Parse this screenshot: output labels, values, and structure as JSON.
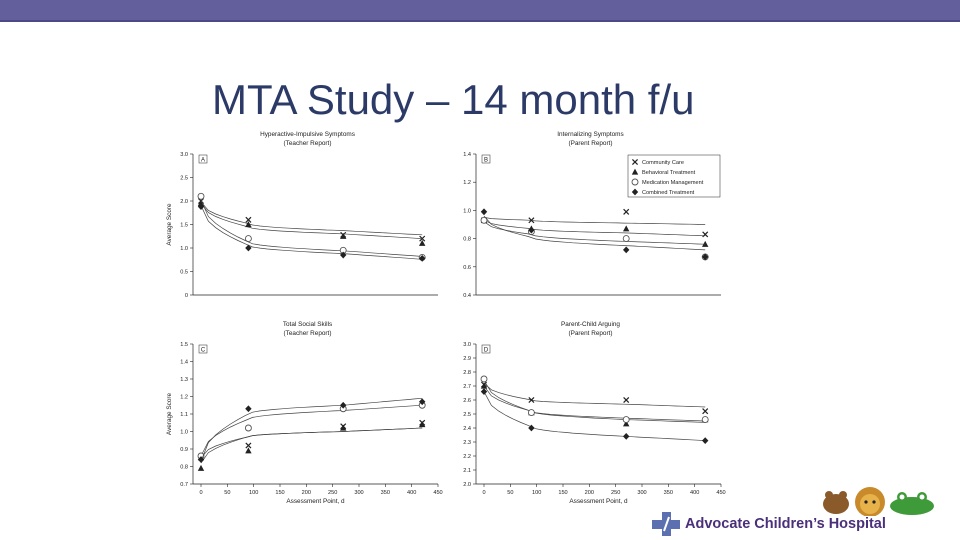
{
  "slide": {
    "title": "MTA Study – 14 month f/u",
    "logo_text": "Advocate Children’s Hospital",
    "accent_color": "#625f9c",
    "title_color": "#2c3a67",
    "logo_color": "#4a2f7a"
  },
  "legend": [
    {
      "name": "Community Care",
      "marker": "x"
    },
    {
      "name": "Behavioral Treatment",
      "marker": "triangle"
    },
    {
      "name": "Medication Management",
      "marker": "circle"
    },
    {
      "name": "Combined Treatment",
      "marker": "diamond"
    }
  ],
  "chart_data": [
    {
      "type": "scatter",
      "panel": "A",
      "title": "Hyperactive-Impulsive Symptoms",
      "subtitle": "(Teacher Report)",
      "xlabel": "",
      "ylabel": "Average Score",
      "xlim": [
        0,
        450
      ],
      "xticks": [],
      "ylim": [
        0,
        3.0
      ],
      "yticks": [
        0,
        0.5,
        1.0,
        1.5,
        2.0,
        2.5,
        3.0
      ],
      "ydecimals": 1,
      "x": [
        0,
        90,
        270,
        420
      ],
      "series": [
        {
          "name": "Community Care",
          "marker": "x",
          "values": [
            2.0,
            1.6,
            1.28,
            1.2
          ],
          "curve": [
            1.98,
            1.52,
            1.37,
            1.28
          ]
        },
        {
          "name": "Behavioral Treatment",
          "marker": "triangle",
          "values": [
            1.95,
            1.5,
            1.25,
            1.1
          ],
          "curve": [
            1.95,
            1.45,
            1.3,
            1.2
          ]
        },
        {
          "name": "Medication Management",
          "marker": "circle",
          "values": [
            2.1,
            1.2,
            0.95,
            0.8
          ],
          "curve": [
            2.02,
            1.13,
            0.94,
            0.82
          ]
        },
        {
          "name": "Combined Treatment",
          "marker": "diamond",
          "values": [
            1.88,
            1.0,
            0.85,
            0.78
          ],
          "curve": [
            1.9,
            1.06,
            0.88,
            0.76
          ]
        }
      ]
    },
    {
      "type": "scatter",
      "panel": "B",
      "title": "Internalizing Symptoms",
      "subtitle": "(Parent Report)",
      "xlabel": "",
      "ylabel": "",
      "xlim": [
        0,
        450
      ],
      "xticks": [],
      "ylim": [
        0.4,
        1.4
      ],
      "yticks": [
        0.4,
        0.6,
        0.8,
        1.0,
        1.2,
        1.4
      ],
      "ydecimals": 1,
      "x": [
        0,
        90,
        270,
        420
      ],
      "series": [
        {
          "name": "Community Care",
          "marker": "x",
          "values": [
            0.93,
            0.93,
            0.99,
            0.83
          ],
          "curve": [
            0.95,
            0.93,
            0.91,
            0.9
          ]
        },
        {
          "name": "Behavioral Treatment",
          "marker": "triangle",
          "values": [
            0.93,
            0.87,
            0.87,
            0.76
          ],
          "curve": [
            0.93,
            0.87,
            0.84,
            0.82
          ]
        },
        {
          "name": "Medication Management",
          "marker": "circle",
          "values": [
            0.93,
            0.85,
            0.8,
            0.67
          ],
          "curve": [
            0.92,
            0.83,
            0.78,
            0.76
          ]
        },
        {
          "name": "Combined Treatment",
          "marker": "diamond",
          "values": [
            0.99,
            0.86,
            0.72,
            0.67
          ],
          "curve": [
            0.96,
            0.81,
            0.75,
            0.72
          ]
        }
      ]
    },
    {
      "type": "scatter",
      "panel": "C",
      "title": "Total Social Skills",
      "subtitle": "(Teacher Report)",
      "xlabel": "Assessment Point, d",
      "ylabel": "Average Score",
      "xlim": [
        0,
        450
      ],
      "xticks": [
        0,
        50,
        100,
        150,
        200,
        250,
        300,
        350,
        400,
        450
      ],
      "ylim": [
        0.7,
        1.5
      ],
      "yticks": [
        0.7,
        0.8,
        0.9,
        1.0,
        1.1,
        1.2,
        1.3,
        1.4,
        1.5
      ],
      "ydecimals": 1,
      "x": [
        0,
        90,
        270,
        420
      ],
      "series": [
        {
          "name": "Community Care",
          "marker": "x",
          "values": [
            0.85,
            0.92,
            1.03,
            1.05
          ],
          "curve": [
            0.85,
            0.97,
            1.0,
            1.02
          ]
        },
        {
          "name": "Behavioral Treatment",
          "marker": "triangle",
          "values": [
            0.79,
            0.89,
            1.02,
            1.04
          ],
          "curve": [
            0.82,
            0.97,
            1.0,
            1.02
          ]
        },
        {
          "name": "Medication Management",
          "marker": "circle",
          "values": [
            0.86,
            1.02,
            1.13,
            1.15
          ],
          "curve": [
            0.86,
            1.07,
            1.12,
            1.15
          ]
        },
        {
          "name": "Combined Treatment",
          "marker": "diamond",
          "values": [
            0.84,
            1.13,
            1.15,
            1.17
          ],
          "curve": [
            0.83,
            1.1,
            1.15,
            1.19
          ]
        }
      ]
    },
    {
      "type": "scatter",
      "panel": "D",
      "title": "Parent-Child Arguing",
      "subtitle": "(Parent Report)",
      "xlabel": "Assessment Point, d",
      "ylabel": "",
      "xlim": [
        0,
        450
      ],
      "xticks": [
        0,
        50,
        100,
        150,
        200,
        250,
        300,
        350,
        400,
        450
      ],
      "ylim": [
        2.0,
        3.0
      ],
      "yticks": [
        2.0,
        2.1,
        2.2,
        2.3,
        2.4,
        2.5,
        2.6,
        2.7,
        2.8,
        2.9,
        3.0
      ],
      "ydecimals": 1,
      "x": [
        0,
        90,
        270,
        420
      ],
      "series": [
        {
          "name": "Community Care",
          "marker": "x",
          "values": [
            2.71,
            2.6,
            2.6,
            2.52
          ],
          "curve": [
            2.72,
            2.6,
            2.57,
            2.55
          ]
        },
        {
          "name": "Behavioral Treatment",
          "marker": "triangle",
          "values": [
            2.7,
            2.51,
            2.43,
            2.46
          ],
          "curve": [
            2.7,
            2.52,
            2.47,
            2.45
          ]
        },
        {
          "name": "Medication Management",
          "marker": "circle",
          "values": [
            2.75,
            2.51,
            2.46,
            2.46
          ],
          "curve": [
            2.74,
            2.52,
            2.46,
            2.44
          ]
        },
        {
          "name": "Combined Treatment",
          "marker": "diamond",
          "values": [
            2.66,
            2.4,
            2.34,
            2.31
          ],
          "curve": [
            2.66,
            2.41,
            2.34,
            2.31
          ]
        }
      ]
    }
  ]
}
